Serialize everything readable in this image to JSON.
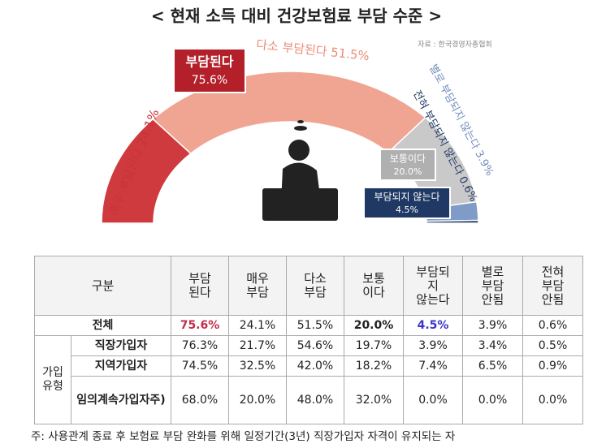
{
  "chart_data": {
    "type": "semi-donut",
    "title": "< 현재 소득 대비 건강보험료 부담 수준 >",
    "source": "자료 : 한국경영자총협회",
    "categories": [
      "매우 부담된다",
      "다소 부담된다",
      "보통이다",
      "별로 부담되지 않는다",
      "전혀 부담되지 않는다"
    ],
    "values": [
      24.1,
      51.5,
      20.0,
      3.9,
      0.6
    ],
    "value_labels": [
      "24.1%",
      "51.5%",
      "20.0%",
      "3.9%",
      "0.6%"
    ],
    "colors": [
      "#cf3a3f",
      "#f0a593",
      "#c9c9c9",
      "#7f9bc8",
      "#203864"
    ],
    "groups": [
      {
        "label": "부담된다",
        "value": 75.6,
        "value_label": "75.6%",
        "color": "#b3202a"
      },
      {
        "label": "부담되지 않는다",
        "value": 4.5,
        "value_label": "4.5%",
        "color": "#203864"
      }
    ]
  },
  "table": {
    "header": [
      "구분",
      "부담\n된다",
      "매우\n부담",
      "다소\n부담",
      "보통\n이다",
      "부담되\n지\n않는다",
      "별로\n부담\n안됨",
      "전혀\n부담\n안됨"
    ],
    "total": {
      "label": "전체",
      "cells": [
        "75.6%",
        "24.1%",
        "51.5%",
        "20.0%",
        "4.5%",
        "3.9%",
        "0.6%"
      ]
    },
    "group": "가입\n유형",
    "rows": [
      {
        "label": "직장가입자",
        "cells": [
          "76.3%",
          "21.7%",
          "54.6%",
          "19.7%",
          "3.9%",
          "3.4%",
          "0.5%"
        ]
      },
      {
        "label": "지역가입자",
        "cells": [
          "74.5%",
          "32.5%",
          "42.0%",
          "18.2%",
          "7.4%",
          "6.5%",
          "0.9%"
        ]
      },
      {
        "label": "임의계속가입자주)",
        "cells": [
          "68.0%",
          "20.0%",
          "48.0%",
          "32.0%",
          "0.0%",
          "0.0%",
          "0.0%"
        ]
      }
    ]
  },
  "footnote": "주: 사용관계 종료 후 보험료 부담 완화를 위해 일정기간(3년) 직장가입자 자격이 유지되는 자"
}
